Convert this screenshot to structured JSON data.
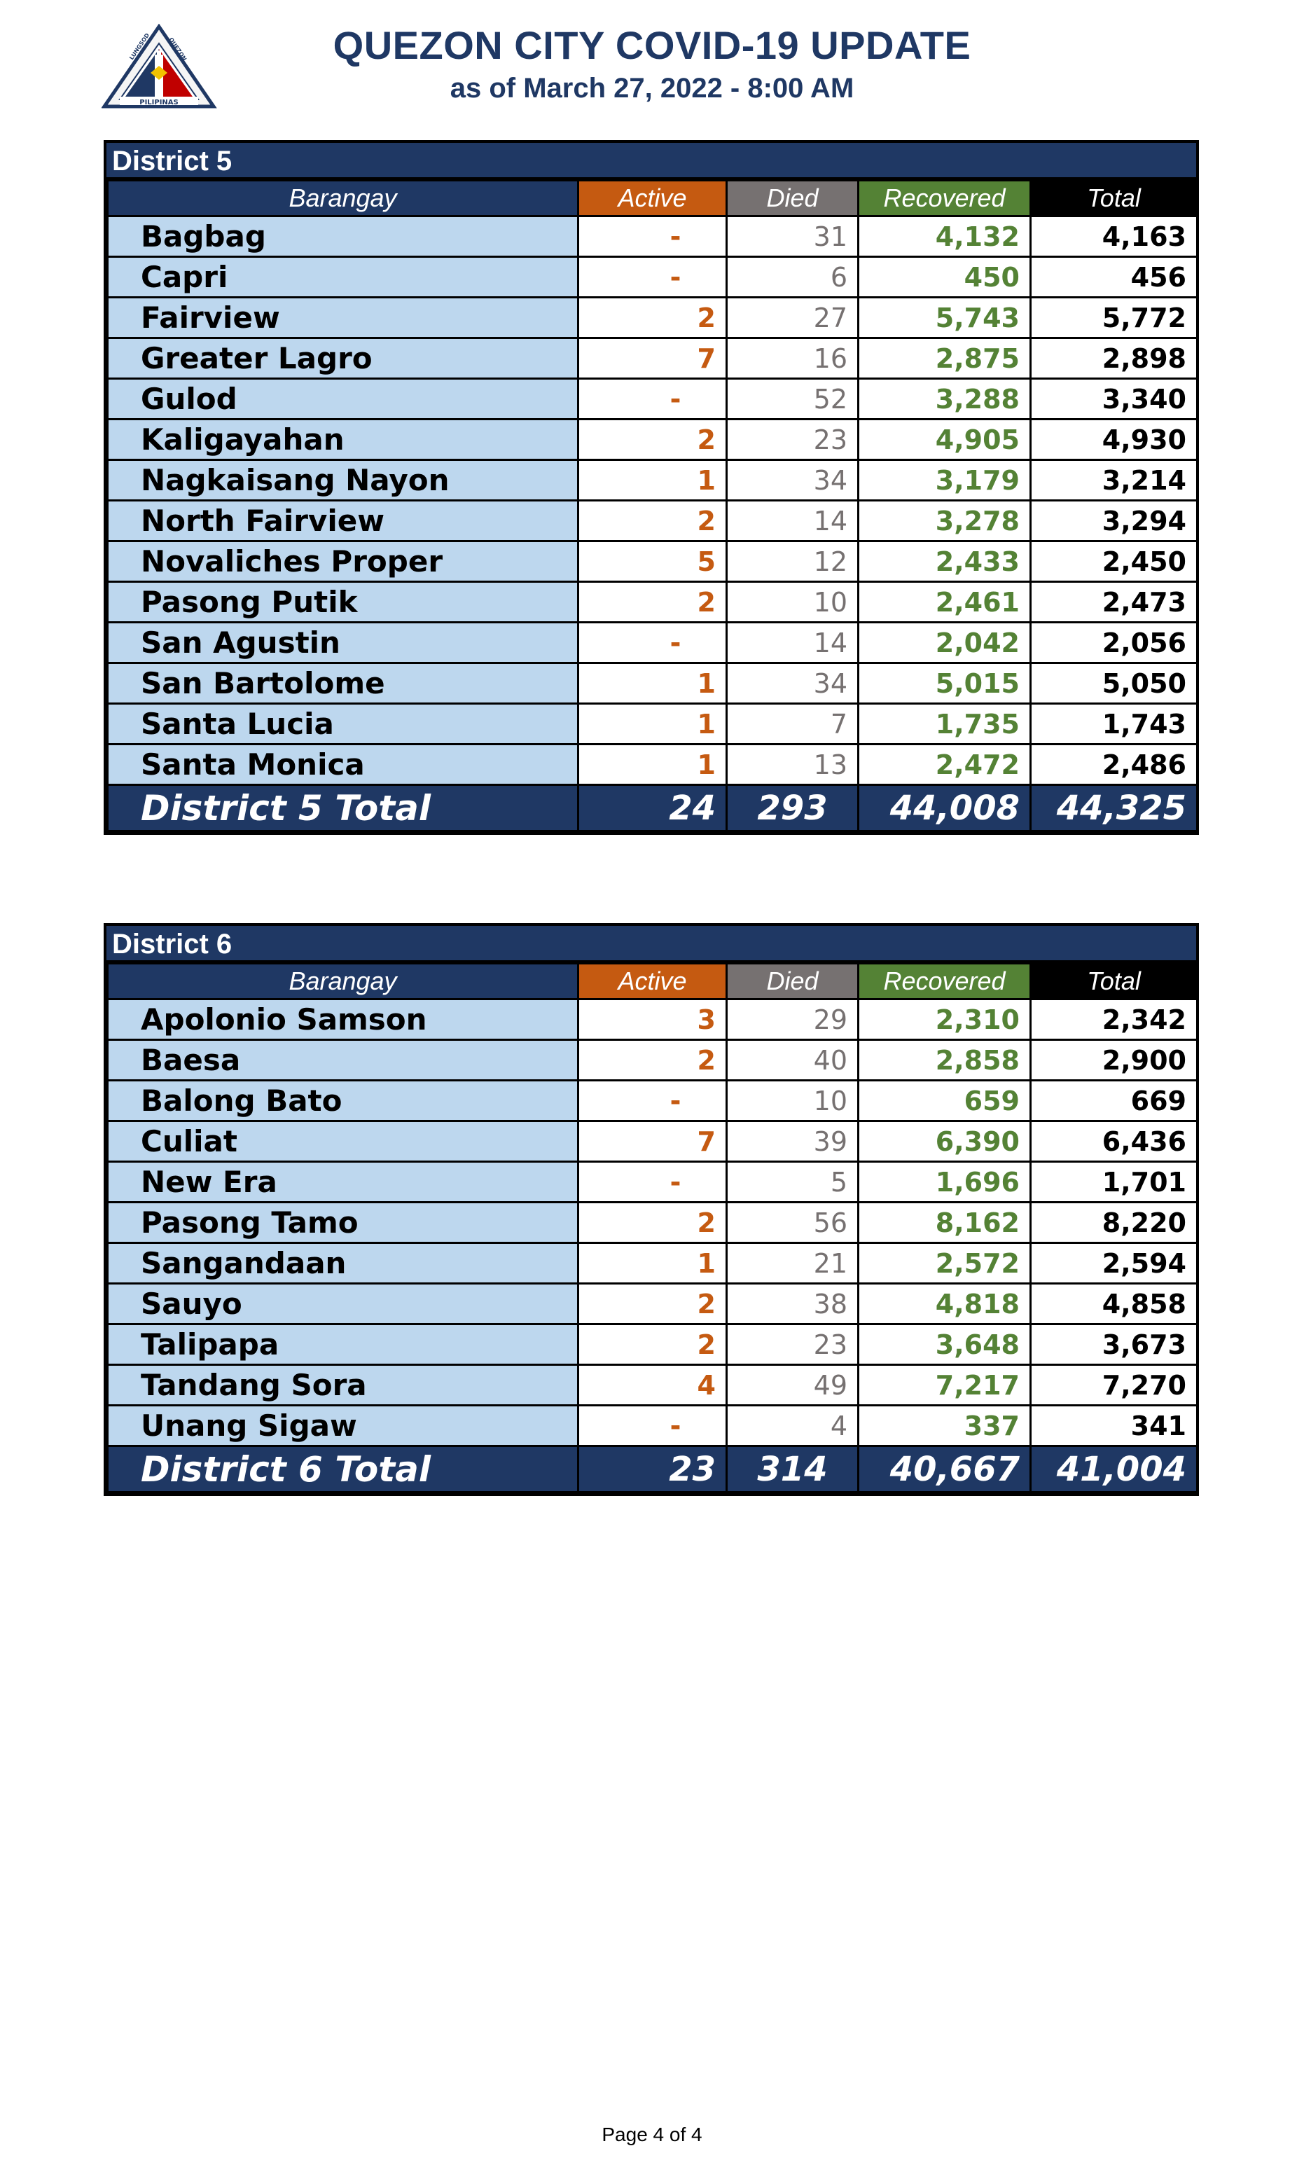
{
  "header": {
    "title": "QUEZON CITY COVID-19 UPDATE",
    "subtitle": "as of March 27, 2022 - 8:00 AM",
    "logo": {
      "text_top_left": "LUNGSOD",
      "text_top_right": "QUEZON",
      "text_bottom": "PILIPINAS"
    }
  },
  "columns": {
    "barangay": "Barangay",
    "active": "Active",
    "died": "Died",
    "recovered": "Recovered",
    "total": "Total"
  },
  "districts": [
    {
      "title": "District 5",
      "rows": [
        {
          "name": "Bagbag",
          "active": "-",
          "died": "31",
          "recovered": "4,132",
          "total": "4,163"
        },
        {
          "name": "Capri",
          "active": "-",
          "died": "6",
          "recovered": "450",
          "total": "456"
        },
        {
          "name": "Fairview",
          "active": "2",
          "died": "27",
          "recovered": "5,743",
          "total": "5,772"
        },
        {
          "name": "Greater Lagro",
          "active": "7",
          "died": "16",
          "recovered": "2,875",
          "total": "2,898"
        },
        {
          "name": "Gulod",
          "active": "-",
          "died": "52",
          "recovered": "3,288",
          "total": "3,340"
        },
        {
          "name": "Kaligayahan",
          "active": "2",
          "died": "23",
          "recovered": "4,905",
          "total": "4,930"
        },
        {
          "name": "Nagkaisang Nayon",
          "active": "1",
          "died": "34",
          "recovered": "3,179",
          "total": "3,214"
        },
        {
          "name": "North Fairview",
          "active": "2",
          "died": "14",
          "recovered": "3,278",
          "total": "3,294"
        },
        {
          "name": "Novaliches Proper",
          "active": "5",
          "died": "12",
          "recovered": "2,433",
          "total": "2,450"
        },
        {
          "name": "Pasong Putik",
          "active": "2",
          "died": "10",
          "recovered": "2,461",
          "total": "2,473"
        },
        {
          "name": "San Agustin",
          "active": "-",
          "died": "14",
          "recovered": "2,042",
          "total": "2,056"
        },
        {
          "name": "San Bartolome",
          "active": "1",
          "died": "34",
          "recovered": "5,015",
          "total": "5,050"
        },
        {
          "name": "Santa Lucia",
          "active": "1",
          "died": "7",
          "recovered": "1,735",
          "total": "1,743"
        },
        {
          "name": "Santa Monica",
          "active": "1",
          "died": "13",
          "recovered": "2,472",
          "total": "2,486"
        }
      ],
      "total": {
        "label": "District 5 Total",
        "active": "24",
        "died": "293",
        "recovered": "44,008",
        "total": "44,325"
      }
    },
    {
      "title": "District 6",
      "rows": [
        {
          "name": "Apolonio Samson",
          "active": "3",
          "died": "29",
          "recovered": "2,310",
          "total": "2,342"
        },
        {
          "name": "Baesa",
          "active": "2",
          "died": "40",
          "recovered": "2,858",
          "total": "2,900"
        },
        {
          "name": "Balong Bato",
          "active": "-",
          "died": "10",
          "recovered": "659",
          "total": "669"
        },
        {
          "name": "Culiat",
          "active": "7",
          "died": "39",
          "recovered": "6,390",
          "total": "6,436"
        },
        {
          "name": "New Era",
          "active": "-",
          "died": "5",
          "recovered": "1,696",
          "total": "1,701"
        },
        {
          "name": "Pasong Tamo",
          "active": "2",
          "died": "56",
          "recovered": "8,162",
          "total": "8,220"
        },
        {
          "name": "Sangandaan",
          "active": "1",
          "died": "21",
          "recovered": "2,572",
          "total": "2,594"
        },
        {
          "name": "Sauyo",
          "active": "2",
          "died": "38",
          "recovered": "4,818",
          "total": "4,858"
        },
        {
          "name": "Talipapa",
          "active": "2",
          "died": "23",
          "recovered": "3,648",
          "total": "3,673"
        },
        {
          "name": "Tandang Sora",
          "active": "4",
          "died": "49",
          "recovered": "7,217",
          "total": "7,270"
        },
        {
          "name": "Unang Sigaw",
          "active": "-",
          "died": "4",
          "recovered": "337",
          "total": "341"
        }
      ],
      "total": {
        "label": "District 6 Total",
        "active": "23",
        "died": "314",
        "recovered": "40,667",
        "total": "41,004"
      }
    }
  ],
  "footer": {
    "page": "Page 4 of 4"
  },
  "colors": {
    "navy": "#1f3864",
    "active": "#c55a11",
    "died": "#767171",
    "recovered": "#548235",
    "barangay_bg": "#bdd7ee"
  }
}
